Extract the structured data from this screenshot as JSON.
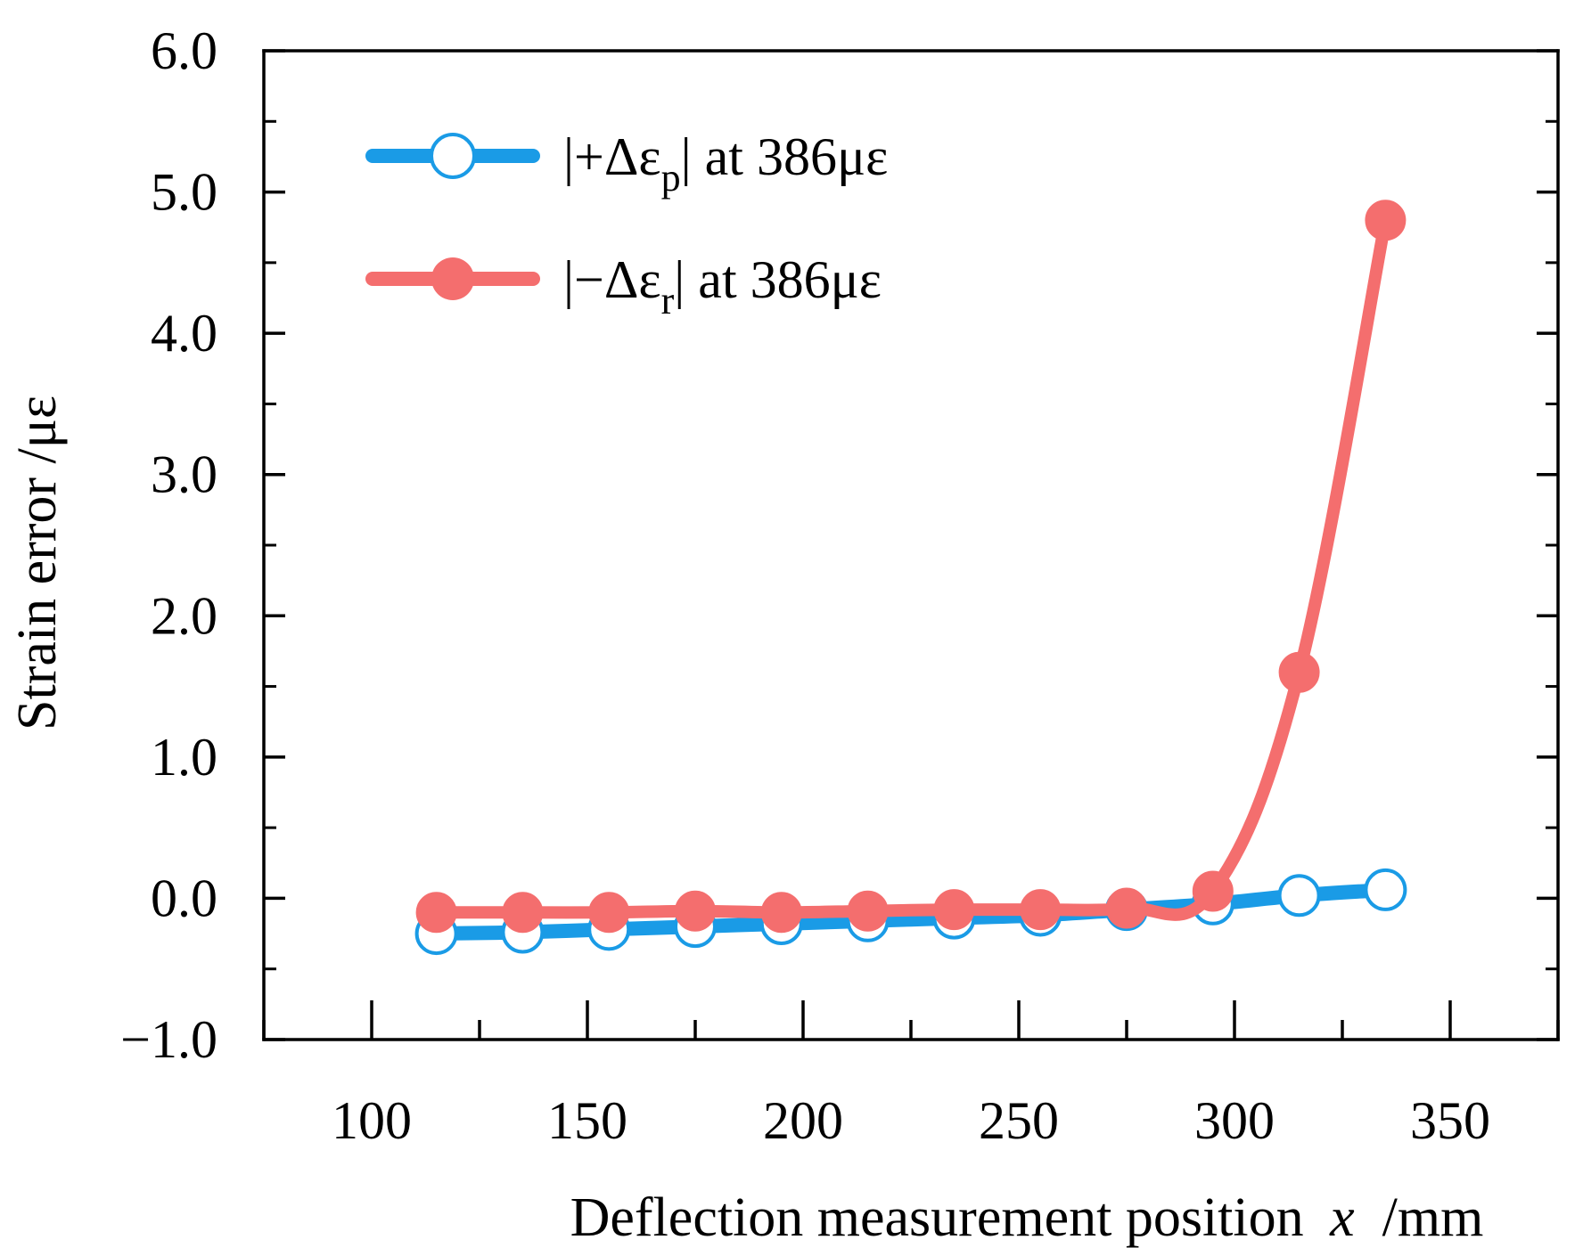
{
  "chart_data": {
    "type": "line",
    "title": "",
    "xlabel": "Deflection measurement position",
    "xlabel_var": "x",
    "xlabel_unit": " /mm",
    "ylabel": "Strain error /με",
    "xlim": [
      75,
      375
    ],
    "ylim": [
      -1.0,
      6.0
    ],
    "x_ticks": [
      100,
      150,
      200,
      250,
      300,
      350
    ],
    "x_tick_labels": [
      "100",
      "150",
      "200",
      "250",
      "300",
      "350"
    ],
    "y_ticks": [
      -1.0,
      0.0,
      1.0,
      2.0,
      3.0,
      4.0,
      5.0,
      6.0
    ],
    "y_tick_labels": [
      "−1.0",
      "0.0",
      "1.0",
      "2.0",
      "3.0",
      "4.0",
      "5.0",
      "6.0"
    ],
    "grid": false,
    "legend_position": "top-left",
    "series": [
      {
        "name": "|+Δεp| at 386με",
        "legend_prefix": "|+Δε",
        "legend_sub": "p",
        "legend_suffix": "| at 386με",
        "color": "#1a9be6",
        "marker": "open-circle",
        "x": [
          115,
          135,
          155,
          175,
          195,
          215,
          235,
          255,
          275,
          295,
          315,
          335
        ],
        "values": [
          -0.25,
          -0.24,
          -0.22,
          -0.2,
          -0.18,
          -0.16,
          -0.14,
          -0.12,
          -0.08,
          -0.04,
          0.02,
          0.06
        ]
      },
      {
        "name": "|−Δεr| at 386με",
        "legend_prefix": "|−Δε",
        "legend_sub": "r",
        "legend_suffix": "| at 386με",
        "color": "#f46e6e",
        "marker": "filled-circle",
        "x": [
          115,
          135,
          155,
          175,
          195,
          215,
          235,
          255,
          275,
          295,
          315,
          335
        ],
        "values": [
          -0.1,
          -0.1,
          -0.1,
          -0.09,
          -0.1,
          -0.09,
          -0.08,
          -0.08,
          -0.07,
          0.05,
          1.6,
          4.8
        ]
      }
    ]
  }
}
